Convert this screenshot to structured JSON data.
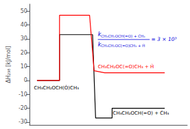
{
  "chart_data": {
    "type": "line",
    "ylabel": "ΔH₂₉₈ [kJ/mol]",
    "xlim": [
      0.0,
      10.5
    ],
    "ylim": [
      -32,
      55
    ],
    "yticks": [
      -30,
      -20,
      -10,
      0,
      10,
      20,
      30,
      40,
      50
    ],
    "grid": false,
    "tick_labels": "y",
    "series": [
      {
        "color": "#000000",
        "x": [
          0.5,
          2.0,
          2.0,
          4.2,
          4.2,
          4.4,
          4.4,
          5.5,
          5.5,
          9.0
        ],
        "values": [
          0.0,
          0.0,
          33.0,
          33.0,
          33.0,
          -27.0,
          -27.0,
          -27.0,
          -20.0,
          -20.0
        ]
      },
      {
        "color": "#ff0000",
        "x": [
          0.5,
          2.0,
          2.0,
          4.0,
          4.0,
          4.3,
          4.3,
          5.0,
          5.0,
          9.0
        ],
        "values": [
          0.0,
          0.0,
          47.0,
          47.0,
          47.0,
          7.0,
          7.0,
          5.5,
          5.5,
          5.5
        ]
      }
    ],
    "annotations": [
      {
        "text": "CH₃CH₂OCH(Ȯ)CH₃",
        "color": "#000000"
      },
      {
        "text": "CH₃CH₂OCH(=O) + ĊH₃",
        "color": "#000000"
      },
      {
        "text": "CH₃CH₂OC(=O)CH₃ + Ḣ̇",
        "color": "#ff0000"
      },
      {
        "text": "k",
        "subscript": "CH₃CH₂OCH(=O) + ĊH₃",
        "color": "#0000dd"
      },
      {
        "text": "k",
        "subscript": "CH₃CH₂OC(=O)CH₃ + Ḣ",
        "color": "#0000dd"
      },
      {
        "text": "= 3 × 10³",
        "color": "#0000dd"
      }
    ]
  }
}
